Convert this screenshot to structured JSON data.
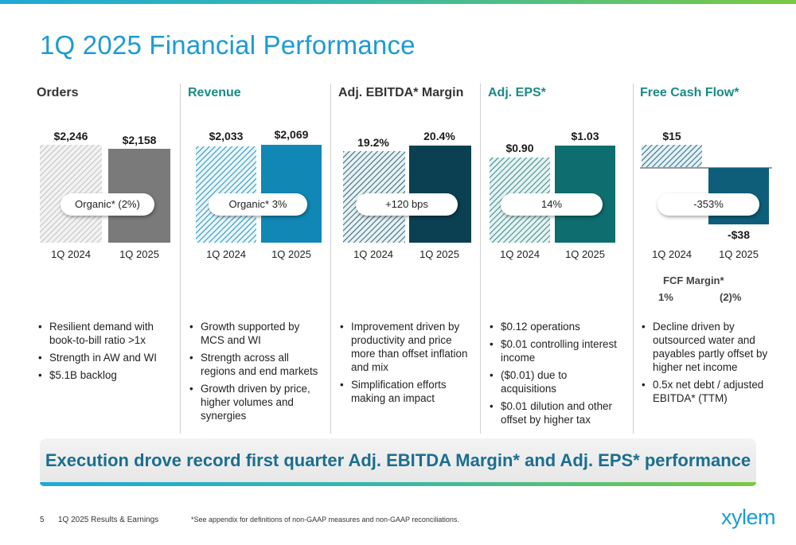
{
  "title": "1Q 2025 Financial Performance",
  "colors": {
    "orders_solid": "#7a7a7a",
    "revenue_solid": "#1187b5",
    "ebitda_solid": "#0b3f52",
    "eps_solid": "#0e6d6e",
    "fcf_solid": "#0e5e7a",
    "title_blue": "#1c9bd4",
    "accent_teal": "#1a8a87"
  },
  "panels": [
    {
      "title": "Orders",
      "title_color": "#333333",
      "categories": [
        "1Q 2024",
        "1Q 2025"
      ],
      "value_labels": [
        "$2,246",
        "$2,158"
      ],
      "values": [
        2246,
        2158
      ],
      "pill": "Organic* (2%)",
      "bullets": [
        "Resilient demand with book-to-bill ratio >1x",
        "Strength in AW and WI",
        "$5.1B backlog"
      ]
    },
    {
      "title": "Revenue",
      "title_color": "#1a8a87",
      "categories": [
        "1Q 2024",
        "1Q 2025"
      ],
      "value_labels": [
        "$2,033",
        "$2,069"
      ],
      "values": [
        2033,
        2069
      ],
      "pill": "Organic* 3%",
      "bullets": [
        "Growth supported by MCS and WI",
        "Strength across all regions and end markets",
        "Growth driven by price, higher volumes and synergies"
      ]
    },
    {
      "title": "Adj. EBITDA* Margin",
      "title_color": "#333333",
      "categories": [
        "1Q 2024",
        "1Q 2025"
      ],
      "value_labels": [
        "19.2%",
        "20.4%"
      ],
      "values": [
        19.2,
        20.4
      ],
      "pill": "+120 bps",
      "bullets": [
        "Improvement driven by productivity and price more than offset inflation and mix",
        "Simplification efforts making an impact"
      ]
    },
    {
      "title": "Adj. EPS*",
      "title_color": "#1a8a87",
      "categories": [
        "1Q 2024",
        "1Q 2025"
      ],
      "value_labels": [
        "$0.90",
        "$1.03"
      ],
      "values": [
        0.9,
        1.03
      ],
      "pill": "14%",
      "bullets": [
        "$0.12 operations",
        "$0.01 controlling interest income",
        "($0.01) due to acquisitions",
        "$0.01 dilution and other offset by higher tax"
      ]
    },
    {
      "title": "Free Cash Flow*",
      "title_color": "#1a8a87",
      "categories": [
        "1Q 2024",
        "1Q 2025"
      ],
      "value_labels": [
        "$15",
        "-$38"
      ],
      "values": [
        15,
        -38
      ],
      "pill": "-353%",
      "bullets": [
        "Decline driven by outsourced water and payables partly offset by higher net income",
        "0.5x net debt / adjusted EBITDA* (TTM)"
      ]
    }
  ],
  "fcf_margin": {
    "label": "FCF Margin*",
    "values": [
      "1%",
      "(2)%"
    ]
  },
  "banner": "Execution drove record first quarter Adj. EBITDA Margin* and Adj. EPS* performance",
  "footer": {
    "page_number": "5",
    "deck_title": "1Q 2025 Results & Earnings",
    "note": "*See appendix for definitions of non-GAAP measures and non-GAAP reconciliations."
  },
  "logo_text": "xylem"
}
